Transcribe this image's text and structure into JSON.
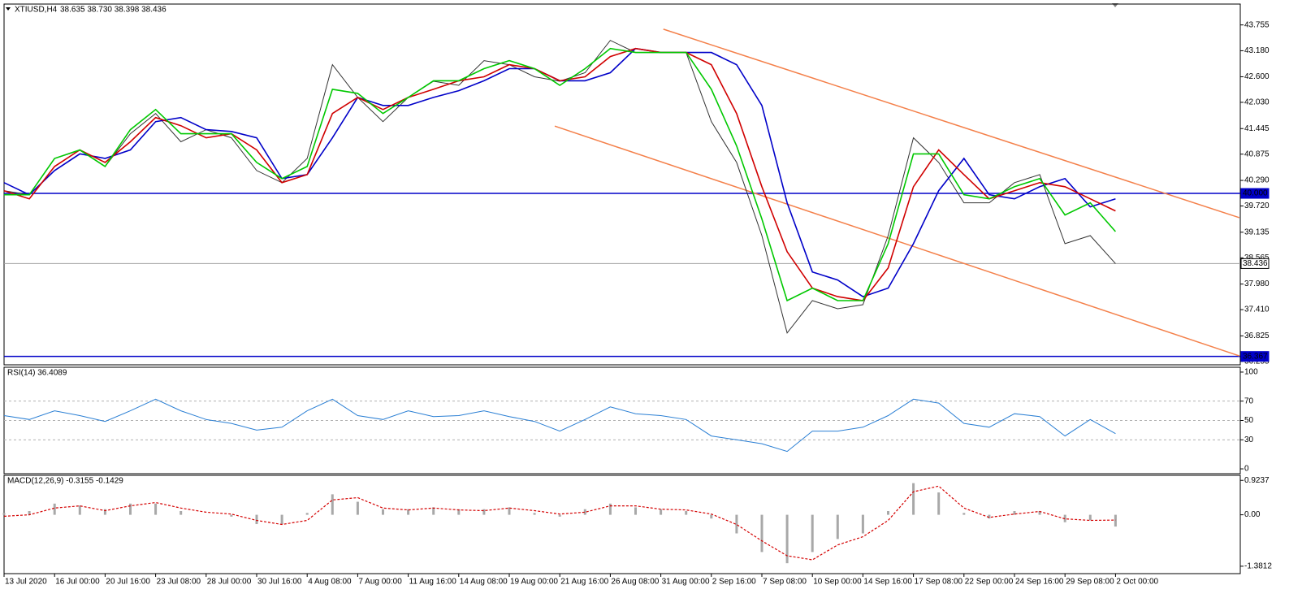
{
  "chart_data": [
    {
      "type": "line",
      "title": "XTIUSD,H4",
      "subtitle": "38.635 38.730 38.398 38.436",
      "categories": [
        "13 Jul 2020",
        null,
        "16 Jul 00:00",
        null,
        "20 Jul 16:00",
        null,
        "23 Jul 08:00",
        null,
        "28 Jul 00:00",
        null,
        "30 Jul 16:00",
        null,
        "4 Aug 08:00",
        null,
        "7 Aug 00:00",
        null,
        "11 Aug 16:00",
        null,
        "14 Aug 08:00",
        null,
        "19 Aug 00:00",
        null,
        "21 Aug 16:00",
        null,
        "26 Aug 08:00",
        null,
        "31 Aug 00:00",
        null,
        "2 Sep 16:00",
        null,
        "7 Sep 08:00",
        null,
        "10 Sep 00:00",
        null,
        "14 Sep 16:00",
        null,
        "17 Sep 08:00",
        null,
        "22 Sep 00:00",
        null,
        "24 Sep 16:00",
        null,
        "29 Sep 08:00",
        null,
        "2 Oct 00:00"
      ],
      "series": [
        {
          "color": "#333333",
          "values": [
            40.06,
            39.97,
            40.78,
            40.96,
            40.6,
            41.33,
            41.78,
            41.15,
            41.42,
            41.24,
            40.51,
            40.24,
            40.78,
            42.87,
            42.14,
            41.6,
            42.14,
            42.5,
            42.41,
            42.96,
            42.87,
            42.6,
            42.5,
            42.69,
            43.41,
            43.14,
            43.14,
            43.14,
            41.6,
            40.69,
            39.06,
            36.89,
            37.61,
            37.43,
            37.52,
            39.06,
            41.24,
            40.69,
            39.79,
            39.79,
            40.24,
            40.42,
            38.88,
            39.06,
            38.436
          ]
        },
        {
          "color": "#0000c8",
          "values": [
            40.24,
            39.97,
            40.51,
            40.88,
            40.78,
            40.97,
            41.6,
            41.69,
            41.42,
            41.38,
            41.24,
            40.33,
            40.42,
            41.24,
            42.14,
            41.96,
            41.96,
            42.14,
            42.29,
            42.51,
            42.78,
            42.78,
            42.51,
            42.51,
            42.69,
            43.23,
            43.14,
            43.14,
            43.14,
            42.87,
            41.96,
            39.79,
            38.25,
            38.07,
            37.7,
            37.89,
            38.88,
            40.06,
            40.78,
            39.97,
            39.88,
            40.15,
            40.33,
            39.7,
            39.88
          ]
        },
        {
          "color": "#d00000",
          "values": [
            40.06,
            39.88,
            40.6,
            40.97,
            40.69,
            41.15,
            41.69,
            41.51,
            41.24,
            41.33,
            40.97,
            40.24,
            40.42,
            41.78,
            42.14,
            41.87,
            42.14,
            42.32,
            42.51,
            42.6,
            42.87,
            42.78,
            42.51,
            42.6,
            43.05,
            43.23,
            43.14,
            43.14,
            42.87,
            41.78,
            40.15,
            38.7,
            37.89,
            37.7,
            37.61,
            38.34,
            40.15,
            40.97,
            40.42,
            39.88,
            40.06,
            40.24,
            40.15,
            39.88,
            39.61
          ]
        },
        {
          "color": "#00c800",
          "values": [
            39.97,
            39.97,
            40.78,
            40.97,
            40.6,
            41.42,
            41.87,
            41.33,
            41.33,
            41.33,
            40.69,
            40.33,
            40.6,
            42.32,
            42.23,
            41.78,
            42.14,
            42.51,
            42.51,
            42.78,
            42.96,
            42.78,
            42.41,
            42.78,
            43.23,
            43.14,
            43.14,
            43.14,
            42.32,
            41.06,
            39.43,
            37.61,
            37.89,
            37.61,
            37.61,
            38.88,
            40.88,
            40.88,
            39.97,
            39.88,
            40.15,
            40.33,
            39.52,
            39.79,
            39.15
          ]
        }
      ],
      "trendlines": [
        {
          "color": "#f4804a",
          "x": [
            26.1,
            48.9
          ],
          "y": [
            43.66,
            39.46
          ]
        },
        {
          "color": "#f4804a",
          "x": [
            21.8,
            48.9
          ],
          "y": [
            41.5,
            36.38
          ]
        }
      ],
      "hlines": [
        {
          "value": 40,
          "label": "40.000",
          "color": "#0000c8"
        },
        {
          "value": 38.436,
          "label": "38.436",
          "color": "#a0a0a0"
        },
        {
          "value": 36.367,
          "label": "36.367",
          "color": "#0000c8"
        }
      ],
      "ylim": [
        36.18,
        44.22
      ],
      "yticks": [
        43.755,
        {
          "value": 43.18,
          "label": "43.180"
        },
        {
          "value": 42.6,
          "label": "42.600"
        },
        {
          "value": 42.03,
          "label": "42.030"
        },
        41.445,
        40.875,
        {
          "value": 40.29,
          "label": "40.290"
        },
        {
          "value": 39.72,
          "label": "39.720"
        },
        39.135,
        38.565,
        {
          "value": 37.98,
          "label": "37.980"
        },
        {
          "value": 37.41,
          "label": "37.410"
        },
        36.825,
        36.255
      ]
    },
    {
      "type": "line",
      "title": "RSI(14) 36.4089",
      "series": [
        {
          "color": "#2a7fd4",
          "values": [
            55,
            51,
            60,
            55,
            49,
            60,
            72,
            60,
            51,
            47,
            40,
            43,
            60,
            72,
            55,
            51,
            60,
            54,
            55,
            60,
            54,
            49,
            39,
            51,
            64,
            57,
            55,
            51,
            34,
            30,
            26,
            18,
            39,
            39,
            43,
            55,
            72,
            68,
            47,
            43,
            57,
            54,
            34,
            51,
            36.4
          ]
        }
      ],
      "levels": [
        30,
        50,
        70
      ],
      "ylim": [
        -5,
        105
      ],
      "yticks": [
        0,
        30,
        50,
        70,
        100
      ]
    },
    {
      "type": "macd",
      "title": "MACD(12,26,9) -0.3155 -0.1429",
      "histogram": {
        "color": "#a8a8a8",
        "values": [
          0.05,
          0.1,
          0.3,
          0.25,
          0.15,
          0.3,
          0.3,
          0.1,
          0,
          -0.05,
          -0.25,
          -0.25,
          0.05,
          0.55,
          0.35,
          0.15,
          0.15,
          0.2,
          0.15,
          0.15,
          0.2,
          0.05,
          -0.05,
          0.15,
          0.3,
          0.2,
          0.15,
          0.1,
          -0.1,
          -0.5,
          -1.0,
          -1.3,
          -1.0,
          -0.65,
          -0.5,
          0.1,
          0.85,
          0.6,
          0.05,
          -0.1,
          0.1,
          0.1,
          -0.2,
          -0.15,
          -0.3155
        ]
      },
      "signal": {
        "color": "#d40000",
        "values": [
          -0.04,
          0,
          0.18,
          0.24,
          0.11,
          0.24,
          0.33,
          0.18,
          0.07,
          0.02,
          -0.15,
          -0.26,
          -0.15,
          0.4,
          0.46,
          0.18,
          0.13,
          0.18,
          0.13,
          0.11,
          0.18,
          0.11,
          0.02,
          0.07,
          0.24,
          0.24,
          0.15,
          0.13,
          0.02,
          -0.26,
          -0.7,
          -1.1,
          -1.21,
          -0.81,
          -0.59,
          -0.15,
          0.62,
          0.77,
          0.18,
          -0.07,
          0.02,
          0.09,
          -0.11,
          -0.15,
          -0.1429
        ]
      },
      "ylim": [
        -1.58,
        1.06
      ],
      "yticks": [
        0.9237,
        {
          "value": 0,
          "label": "0.00"
        },
        -1.3812
      ]
    }
  ]
}
